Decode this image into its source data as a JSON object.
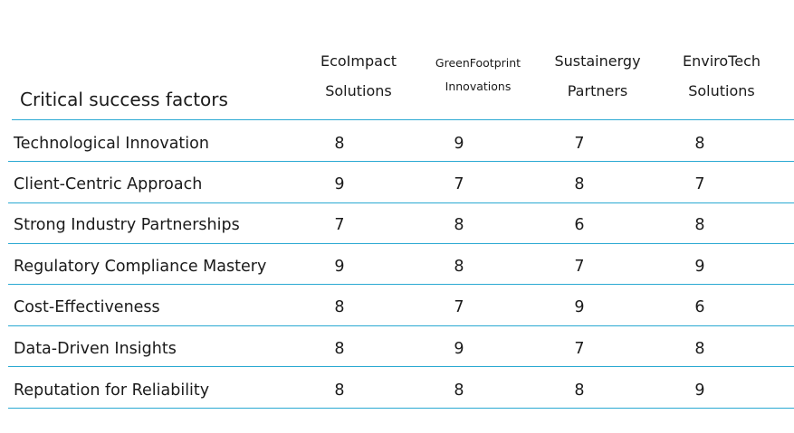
{
  "table": {
    "header_title": "Critical success factors",
    "columns": [
      {
        "line1": "EcoImpact",
        "line2": "Solutions"
      },
      {
        "line1": "GreenFootprint",
        "line2": "Innovations"
      },
      {
        "line1": "Sustainergy",
        "line2": "Partners"
      },
      {
        "line1": "EnviroTech",
        "line2": "Solutions"
      }
    ],
    "rows": [
      {
        "label": "Technological Innovation",
        "values": [
          "8",
          "9",
          "7",
          "8"
        ]
      },
      {
        "label": "Client-Centric Approach",
        "values": [
          "9",
          "7",
          "8",
          "7"
        ]
      },
      {
        "label": "Strong Industry Partnerships",
        "values": [
          "7",
          "8",
          "6",
          "8"
        ]
      },
      {
        "label": "Regulatory Compliance Mastery",
        "values": [
          "9",
          "8",
          "7",
          "9"
        ]
      },
      {
        "label": "Cost-Effectiveness",
        "values": [
          "8",
          "7",
          "9",
          "6"
        ]
      },
      {
        "label": "Data-Driven Insights",
        "values": [
          "8",
          "9",
          "7",
          "8"
        ]
      },
      {
        "label": "Reputation for Reliability",
        "values": [
          "8",
          "8",
          "8",
          "9"
        ]
      }
    ],
    "accent_color": "#2aa9d2"
  }
}
